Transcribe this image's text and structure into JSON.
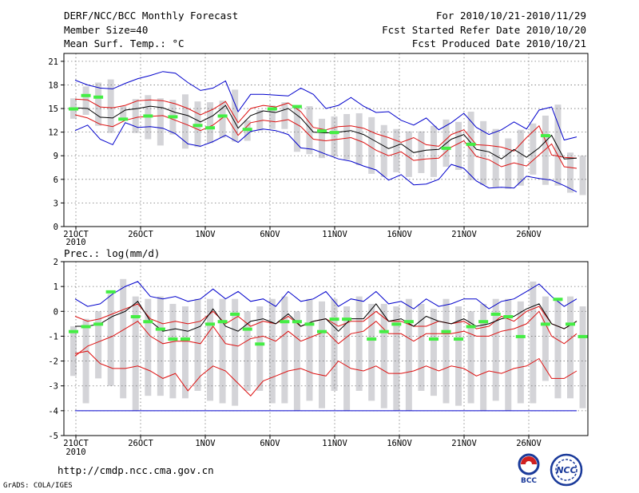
{
  "header": {
    "title": "DERF/NCC/BCC Monthly Forecast",
    "member_size": "Member Size=40",
    "variable": "Mean Surf. Temp.: °C",
    "period": "For 2010/10/21-2010/11/29",
    "started": "Fcst Started Refer Date 2010/10/20",
    "produced": "Fcst Produced Date 2010/10/21"
  },
  "footer": {
    "url": "http://cmdp.ncc.cma.gov.cn",
    "credit": "GrADS: COLA/IGES",
    "logo_left_text": "BCC",
    "logo_right_text": "NCC"
  },
  "colors": {
    "envelope": "#0000cc",
    "spread": "#dd1111",
    "mean": "#000000",
    "box": "#d4d4d8",
    "marker": "#44ee44"
  },
  "chart_data": [
    {
      "type": "box-ensemble",
      "title": "Mean Surf. Temp.: °C",
      "x_tick_labels": [
        "21OCT",
        "26OCT",
        "1NOV",
        "6NOV",
        "11NOV",
        "16NOV",
        "21NOV",
        "26NOV"
      ],
      "x_year_label": "2010",
      "days": 40,
      "ylim": [
        0,
        22
      ],
      "yticks": [
        0,
        3,
        6,
        9,
        12,
        15,
        18,
        21
      ],
      "series": [
        {
          "name": "max",
          "values": [
            18.6,
            18,
            17.6,
            17.5,
            18.2,
            18.8,
            19.2,
            19.7,
            19.5,
            18.3,
            17.3,
            17.6,
            18.5,
            14.6,
            16.8,
            16.8,
            16.7,
            16.6,
            17.6,
            16.8,
            15,
            15.4,
            16.4,
            15.3,
            14.5,
            14.6,
            13.5,
            12.9,
            13.8,
            12.3,
            13.2,
            14.4,
            12.6,
            11.7,
            12.3,
            13.3,
            12.4,
            14.8,
            15.2,
            11,
            11.4,
            12
          ]
        },
        {
          "name": "upper",
          "values": [
            16.2,
            16.1,
            15.2,
            15.1,
            15.4,
            16,
            16.1,
            16,
            15.6,
            15,
            14.2,
            14.9,
            15.9,
            13.2,
            15,
            15.4,
            15.2,
            15.7,
            14.6,
            12.6,
            12.3,
            12.7,
            12.8,
            12.5,
            11.8,
            11.3,
            10.7,
            11.3,
            10.4,
            10.2,
            11.7,
            12.3,
            10.4,
            10.3,
            10.1,
            9.6,
            11.3,
            12.8,
            9.1,
            8.8,
            8.7
          ]
        },
        {
          "name": "mean",
          "values": [
            15.1,
            15,
            13.9,
            13.8,
            14.8,
            15,
            15.3,
            15.1,
            14.5,
            14.1,
            13.3,
            14.1,
            15.4,
            12.5,
            14.1,
            14.7,
            14.5,
            15,
            13.8,
            12,
            11.9,
            12,
            12.2,
            11.7,
            10.8,
            9.9,
            10.5,
            9.4,
            9.7,
            9.8,
            11.1,
            11.7,
            9.8,
            9.5,
            8.6,
            9.8,
            8.8,
            10,
            11.6,
            8.6,
            8.7,
            8.5
          ]
        },
        {
          "name": "lower",
          "values": [
            14.2,
            13.8,
            13,
            12.7,
            13.5,
            13.9,
            14,
            14.1,
            13.5,
            12.9,
            12.2,
            12.9,
            14.1,
            11.6,
            13.2,
            13.5,
            13.3,
            13.6,
            12.7,
            11.1,
            10.9,
            11.1,
            11.3,
            10.7,
            9.7,
            9,
            9.5,
            8.4,
            8.6,
            8.7,
            10.1,
            10.9,
            8.9,
            8.5,
            7.6,
            8.1,
            7.7,
            9.1,
            10.5,
            7.6,
            7.4,
            7.2
          ]
        },
        {
          "name": "min",
          "values": [
            12.2,
            12.9,
            11.1,
            10.4,
            13.2,
            12.6,
            12.7,
            12.5,
            11.8,
            10.5,
            10.2,
            10.8,
            11.6,
            10.7,
            12.1,
            12.4,
            12.2,
            11.7,
            10,
            9.8,
            9.2,
            8.6,
            8.3,
            7.7,
            7.2,
            5.9,
            6.6,
            5.3,
            5.4,
            6,
            7.9,
            7.4,
            5.8,
            4.9,
            5,
            4.9,
            6.4,
            6.1,
            5.9,
            5.2,
            4.4
          ]
        },
        {
          "name": "box_top",
          "values": [
            16.3,
            17.8,
            18.3,
            18.7,
            15.3,
            16.2,
            16.7,
            16.3,
            16.1,
            16.8,
            15.9,
            15.8,
            16,
            17.4,
            13.5,
            14.8,
            15.4,
            15.8,
            15.4,
            15.3,
            13.7,
            14,
            14.3,
            14.4,
            13.9,
            12.9,
            12.4,
            12.1,
            12.1,
            12.8,
            13.6,
            13.3,
            14.6,
            13.4,
            12.4,
            11.2,
            12.3,
            13.1,
            14.1,
            15.5,
            9.4,
            9,
            8.2
          ]
        },
        {
          "name": "box_bottom",
          "values": [
            13.7,
            14.2,
            12.8,
            11.9,
            13.5,
            11.9,
            11.1,
            10.3,
            11.7,
            9.9,
            10.1,
            10.6,
            11.3,
            10.8,
            10.9,
            12.2,
            12.4,
            12.4,
            9.5,
            9.2,
            8.7,
            8.9,
            8.5,
            7.8,
            6.7,
            6.3,
            6.9,
            6.3,
            6.8,
            6.3,
            7.6,
            7.2,
            5.9,
            5.3,
            5,
            4.8,
            5.2,
            6.6,
            5.3,
            5.2,
            4.3,
            4
          ]
        },
        {
          "name": "marker",
          "values": [
            15,
            16.7,
            16.5,
            null,
            13.7,
            null,
            14.1,
            null,
            14,
            null,
            12.9,
            12.6,
            14.1,
            null,
            12.4,
            null,
            15,
            null,
            15.3,
            null,
            12.2,
            12,
            null,
            null,
            null,
            null,
            null,
            null,
            null,
            null,
            10,
            null,
            10.5,
            null,
            null,
            null,
            null,
            null,
            11.6,
            null,
            null,
            null,
            8.1
          ]
        }
      ]
    },
    {
      "type": "box-ensemble",
      "title": "Prec.: log(mm/d)",
      "x_tick_labels": [
        "21OCT",
        "26OCT",
        "1NOV",
        "6NOV",
        "11NOV",
        "16NOV",
        "21NOV",
        "26NOV"
      ],
      "x_year_label": "2010",
      "days": 40,
      "ylim": [
        -5,
        2
      ],
      "yticks": [
        -5,
        -4,
        -3,
        -2,
        -1,
        0,
        1,
        2
      ],
      "series": [
        {
          "name": "max",
          "values": [
            0.5,
            0.2,
            0.3,
            0.7,
            1,
            1.2,
            0.6,
            0.5,
            0.6,
            0.4,
            0.5,
            0.9,
            0.5,
            0.8,
            0.4,
            0.5,
            0.2,
            0.8,
            0.4,
            0.5,
            0.8,
            0.2,
            0.5,
            0.4,
            0.8,
            0.3,
            0.4,
            0.1,
            0.5,
            0.2,
            0.3,
            0.5,
            0.5,
            0.1,
            0.4,
            0.5,
            0.8,
            1.1,
            0.6,
            0.2,
            0.5,
            -0.05
          ]
        },
        {
          "name": "upper",
          "values": [
            -0.2,
            -0.4,
            -0.3,
            -0.1,
            0.1,
            0.3,
            -0.3,
            -0.5,
            -0.4,
            -0.5,
            -0.4,
            0,
            -0.5,
            -0.2,
            -0.6,
            -0.4,
            -0.5,
            -0.2,
            -0.6,
            -0.4,
            -0.3,
            -0.6,
            -0.4,
            -0.4,
            0,
            -0.4,
            -0.4,
            -0.6,
            -0.6,
            -0.4,
            -0.5,
            -0.4,
            -0.7,
            -0.6,
            -0.2,
            -0.4,
            0,
            0.2,
            -0.5,
            -0.7,
            -0.4,
            -0.8
          ]
        },
        {
          "name": "mean",
          "values": [
            -0.6,
            -0.6,
            -0.5,
            -0.2,
            0,
            0.4,
            -0.4,
            -0.8,
            -0.7,
            -0.8,
            -0.6,
            0.1,
            -0.6,
            -0.8,
            -0.4,
            -0.3,
            -0.5,
            -0.1,
            -0.6,
            -0.4,
            -0.3,
            -0.8,
            -0.3,
            -0.3,
            0.3,
            -0.4,
            -0.3,
            -0.6,
            -0.2,
            -0.4,
            -0.5,
            -0.3,
            -0.6,
            -0.5,
            -0.3,
            -0.2,
            0.1,
            0.3,
            -0.5,
            -0.7,
            -0.4,
            -0.9
          ]
        },
        {
          "name": "lower",
          "values": [
            -1.8,
            -1.4,
            -1.2,
            -1,
            -0.7,
            -0.4,
            -1,
            -1.3,
            -1.2,
            -1.2,
            -1.3,
            -0.6,
            -1.3,
            -1.4,
            -1.1,
            -1,
            -1.2,
            -0.8,
            -1.2,
            -1,
            -0.8,
            -1.3,
            -0.9,
            -0.8,
            -0.4,
            -0.9,
            -0.9,
            -1.2,
            -0.9,
            -0.9,
            -0.9,
            -0.8,
            -1,
            -1,
            -0.8,
            -0.7,
            -0.5,
            0,
            -1,
            -1.3,
            -0.9,
            -1.4
          ]
        },
        {
          "name": "lowest",
          "values": [
            -1.7,
            -1.6,
            -2.1,
            -2.3,
            -2.3,
            -2.2,
            -2.4,
            -2.7,
            -2.5,
            -3.2,
            -2.6,
            -2.2,
            -2.4,
            -2.9,
            -3.4,
            -2.8,
            -2.6,
            -2.4,
            -2.3,
            -2.5,
            -2.6,
            -2,
            -2.3,
            -2.4,
            -2.2,
            -2.5,
            -2.5,
            -2.4,
            -2.2,
            -2.4,
            -2.2,
            -2.3,
            -2.6,
            -2.4,
            -2.5,
            -2.3,
            -2.2,
            -1.9,
            -2.7,
            -2.7,
            -2.4,
            -2.8
          ]
        },
        {
          "name": "min",
          "values": [
            -4,
            -4,
            -4,
            -4,
            -4,
            -4,
            -4,
            -4,
            -4,
            -4,
            -4,
            -4,
            -4,
            -4,
            -4,
            -4,
            -4,
            -4,
            -4,
            -4,
            -4,
            -4,
            -4,
            -4,
            -4,
            -4,
            -4,
            -4,
            -4,
            -4,
            -4,
            -4,
            -4,
            -4,
            -4,
            -4,
            -4,
            -4,
            -4,
            -4,
            -4,
            -4
          ]
        },
        {
          "name": "box_top",
          "values": [
            -0.6,
            -0.3,
            0,
            0.7,
            1.3,
            0.6,
            0.5,
            0.6,
            0.3,
            0.2,
            0.5,
            0.5,
            0.5,
            0.5,
            0,
            0.2,
            0.5,
            0.6,
            0,
            0.5,
            0.4,
            0.5,
            0.2,
            0.6,
            0.3,
            0.3,
            0.2,
            0.5,
            0.3,
            0.1,
            0.5,
            0.2,
            0,
            0.3,
            0.5,
            0.5,
            0.4,
            1.2,
            0.6,
            0.5,
            0.6,
            0.2,
            -0.2
          ]
        },
        {
          "name": "box_bottom",
          "values": [
            -2.6,
            -3.7,
            -2.7,
            -3,
            -3.5,
            -4,
            -3.4,
            -3.4,
            -3.5,
            -3.5,
            -3.2,
            -3.6,
            -3.7,
            -3.8,
            -3.2,
            -3.2,
            -3.7,
            -3.7,
            -4,
            -3.6,
            -3.9,
            -3.2,
            -4,
            -3.2,
            -3.6,
            -3.9,
            -4,
            -4,
            -3.2,
            -3.4,
            -3.7,
            -3.8,
            -3.7,
            -4,
            -3.6,
            -4,
            -3.7,
            -3.7,
            -2.8,
            -3.5,
            -3.5,
            -3.9,
            -4
          ]
        },
        {
          "name": "marker",
          "values": [
            -0.8,
            -0.6,
            -0.5,
            0.8,
            null,
            -0.2,
            -0.4,
            -0.7,
            -1.1,
            -1.1,
            null,
            -0.5,
            -0.4,
            -0.1,
            -0.7,
            -1.3,
            null,
            -0.4,
            -0.4,
            -0.5,
            -0.8,
            -0.3,
            -0.3,
            null,
            -1.1,
            -0.8,
            -0.5,
            -0.4,
            null,
            -1.1,
            -0.8,
            -1.1,
            -0.6,
            -0.4,
            -0.1,
            -0.2,
            -1,
            null,
            -0.5,
            0.5,
            -0.5,
            -1,
            -0.3,
            -1
          ]
        }
      ]
    }
  ]
}
